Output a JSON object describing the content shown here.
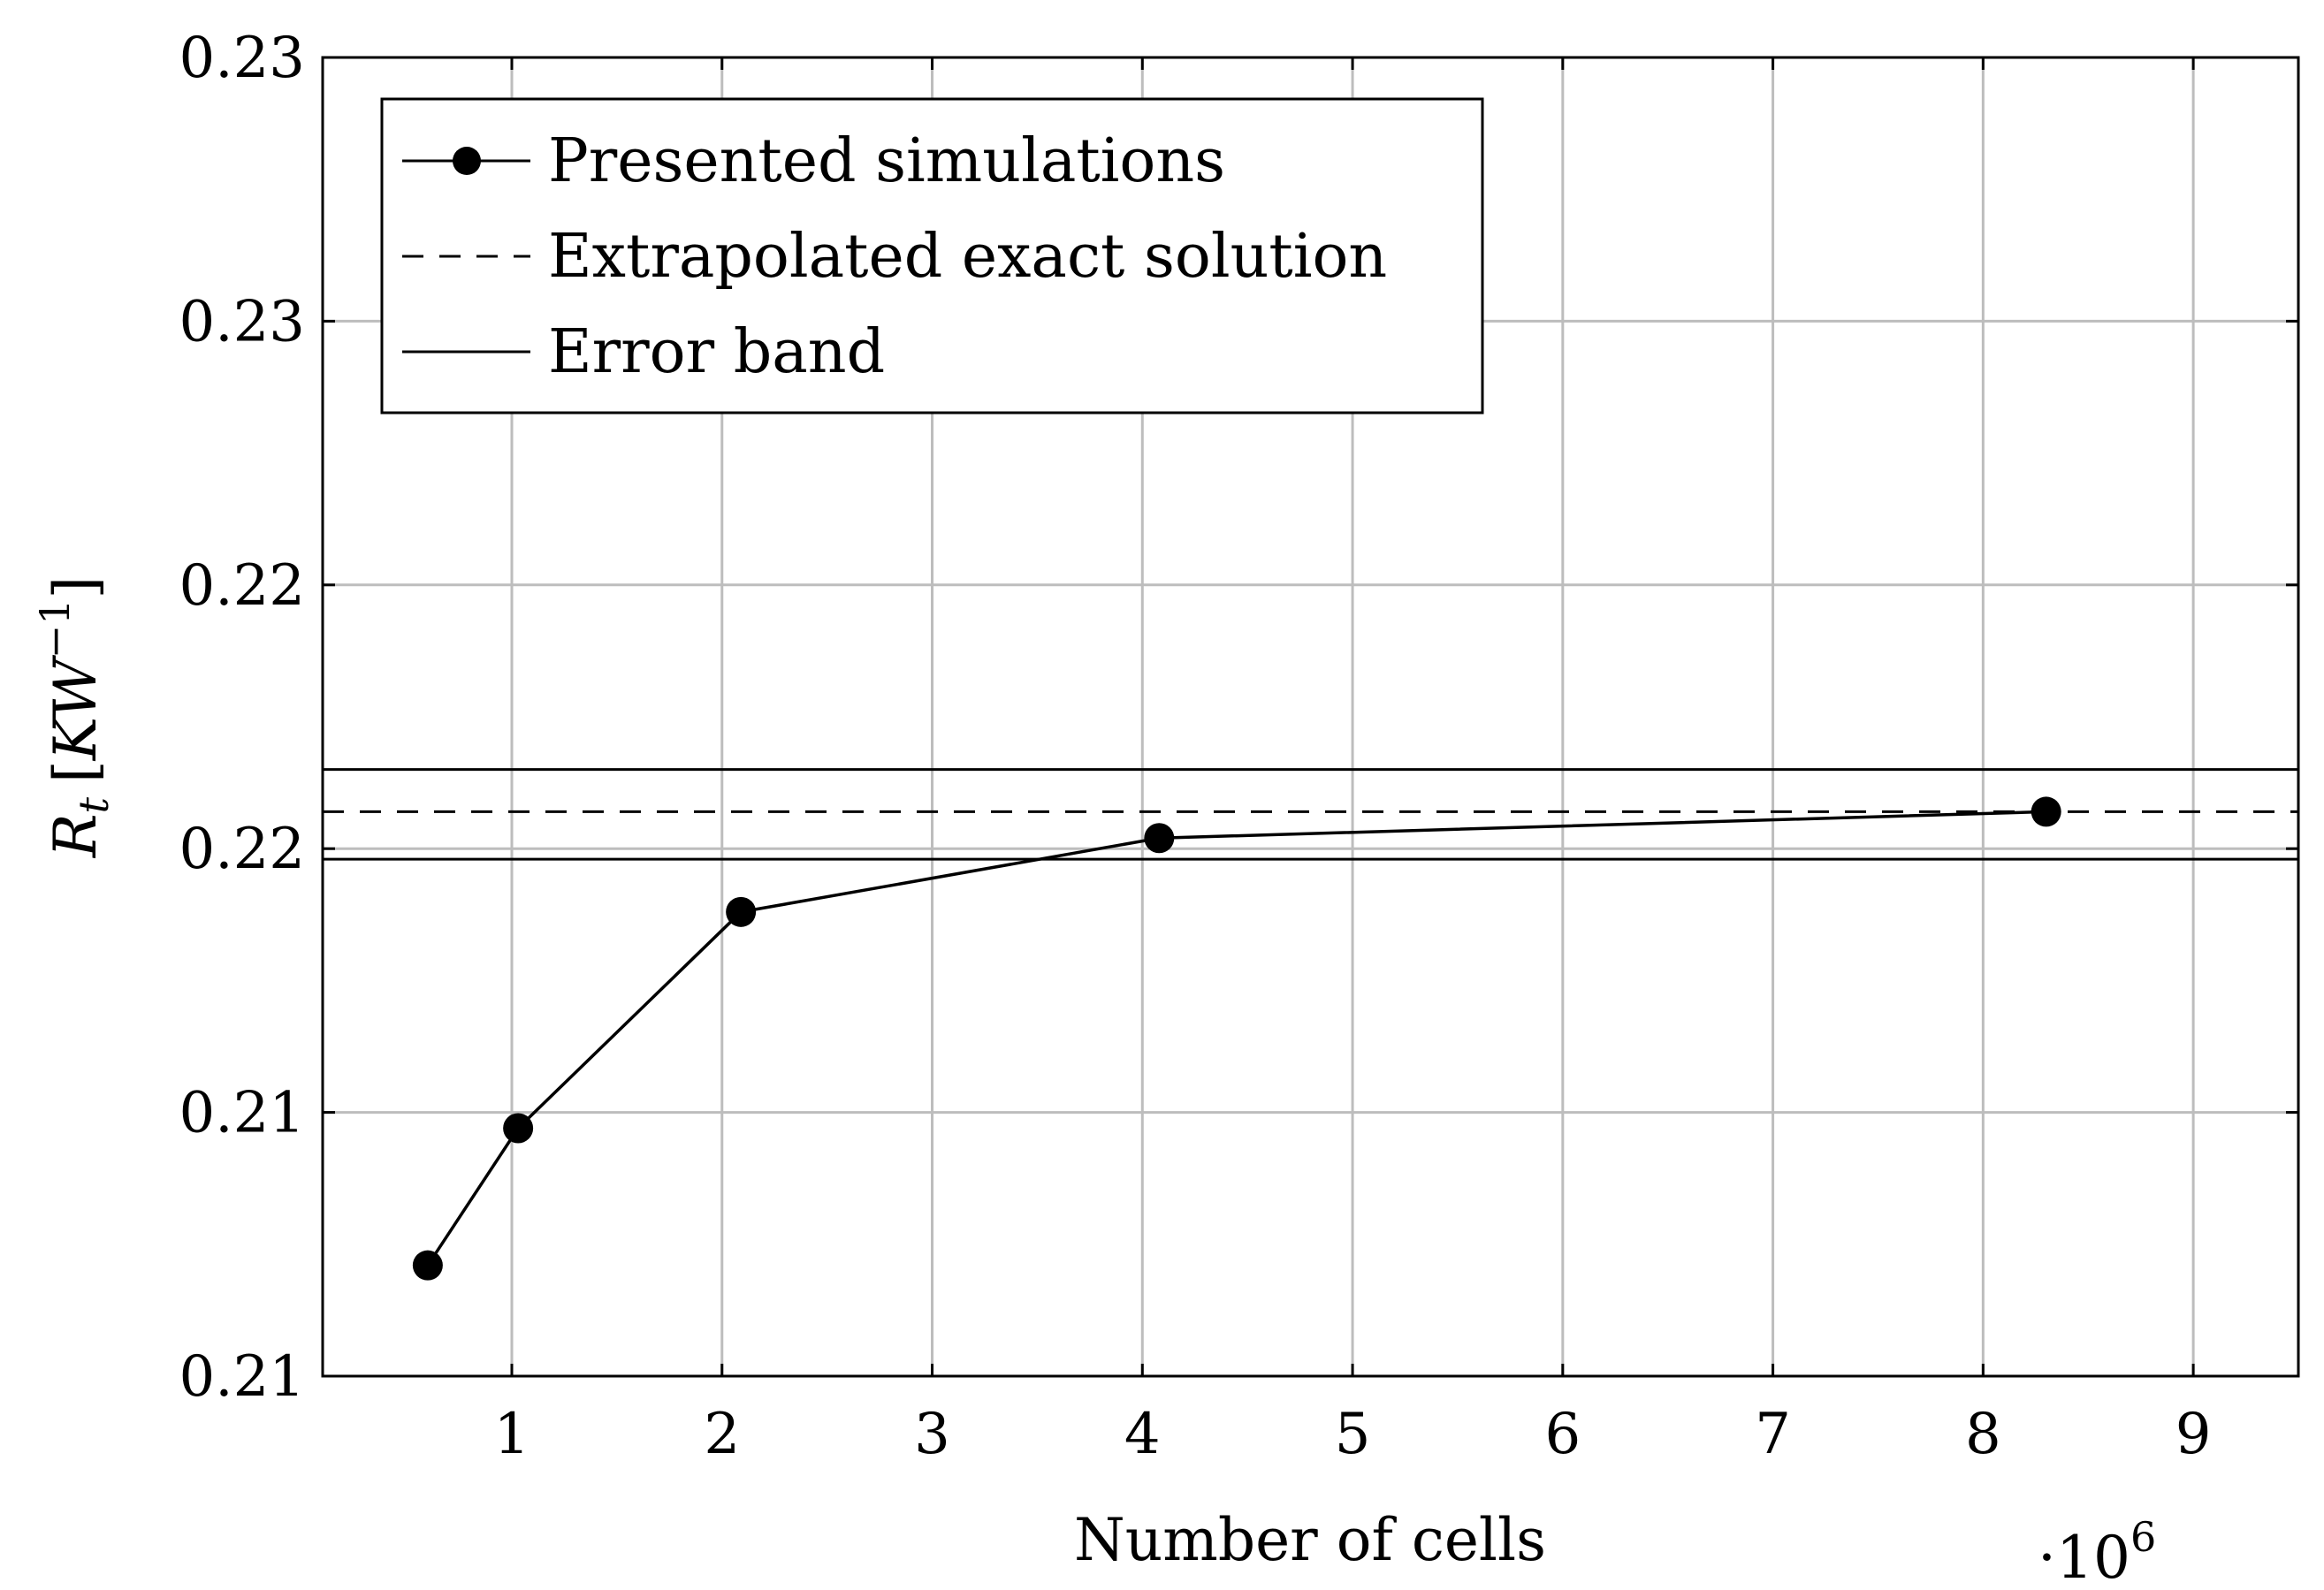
{
  "chart_data": {
    "type": "line",
    "xlabel": "Number of cells",
    "x_multiplier": "·10",
    "x_multiplier_exp": "6",
    "ylabel": {
      "symbol": "R",
      "sub": "t",
      "unit_open": "[",
      "unit": "KW",
      "unit_exp": "−1",
      "unit_close": "]"
    },
    "xlim": [
      0.1,
      9.5
    ],
    "ylim": [
      0.205,
      0.23
    ],
    "x_ticks": [
      1,
      2,
      3,
      4,
      5,
      6,
      7,
      8,
      9
    ],
    "x_tick_labels": [
      "1",
      "2",
      "3",
      "4",
      "5",
      "6",
      "7",
      "8",
      "9"
    ],
    "y_ticks": [
      0.205,
      0.21,
      0.215,
      0.22,
      0.225,
      0.23
    ],
    "y_tick_labels": [
      "0.21",
      "0.21",
      "0.22",
      "0.22",
      "0.23",
      "0.23"
    ],
    "grid": true,
    "legend_position": "top-left",
    "series": [
      {
        "name": "Presented simulations",
        "style": "solid-with-markers",
        "x": [
          0.6,
          1.03,
          2.09,
          4.08,
          8.3
        ],
        "y": [
          0.2071,
          0.2097,
          0.2138,
          0.2152,
          0.2157
        ]
      }
    ],
    "reference_lines": [
      {
        "name": "Extrapolated exact solution",
        "style": "dashed",
        "y": 0.2157
      },
      {
        "name": "Error band",
        "style": "solid",
        "y": 0.2165
      },
      {
        "name": "Error band",
        "style": "solid",
        "y": 0.2148
      }
    ],
    "legend": [
      {
        "label": "Presented simulations",
        "style": "solid-with-markers"
      },
      {
        "label": "Extrapolated exact solution",
        "style": "dashed"
      },
      {
        "label": "Error band",
        "style": "solid"
      }
    ]
  }
}
